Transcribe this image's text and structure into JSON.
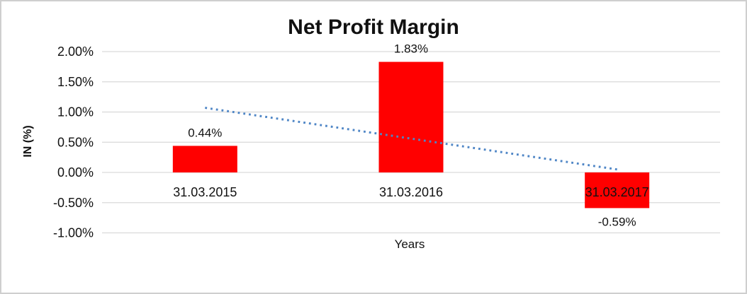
{
  "chart_data": {
    "type": "bar",
    "title": "Net Profit Margin",
    "xlabel": "Years",
    "ylabel": "IN (%)",
    "categories": [
      "31.03.2015",
      "31.03.2016",
      "31.03.2017"
    ],
    "values": [
      0.44,
      1.83,
      -0.59
    ],
    "data_labels": [
      "0.44%",
      "1.83%",
      "-0.59%"
    ],
    "ylim": [
      -1.0,
      2.0
    ],
    "ytick_step": 0.5,
    "yticks": [
      2.0,
      1.5,
      1.0,
      0.5,
      0.0,
      -0.5,
      -1.0
    ],
    "ytick_labels": [
      "2.00%",
      "1.50%",
      "1.00%",
      "0.50%",
      "0.00%",
      "-0.50%",
      "-1.00%"
    ],
    "grid": true,
    "legend": "none",
    "bar_color": "#ff0000",
    "gridline_color": "#d9d9d9",
    "text_color": "#111111",
    "trendline": {
      "type": "linear",
      "style": "dotted",
      "color": "#4f86c6",
      "start": {
        "category_index": 0,
        "value": 1.07
      },
      "end": {
        "category_index": 2,
        "value": 0.05
      }
    }
  }
}
